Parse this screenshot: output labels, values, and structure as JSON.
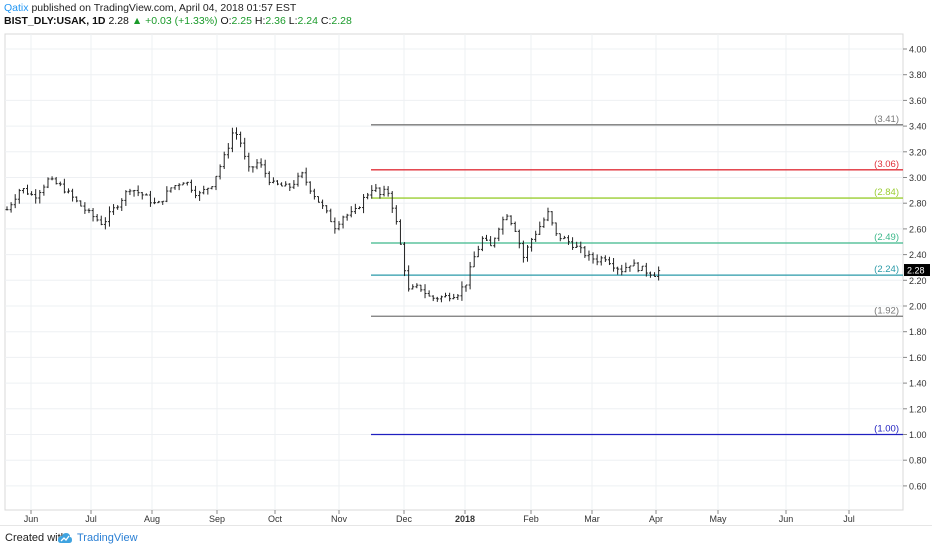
{
  "header": {
    "author": "Qatix",
    "published": "published on TradingView.com, April 04, 2018 01:57 EST",
    "symbol": "BIST_DLY:USAK, 1D",
    "last": "2.28",
    "change": "+0.03 (+1.33%)",
    "o_label": "O:",
    "o_value": "2.25",
    "h_label": "H:",
    "h_value": "2.36",
    "l_label": "L:",
    "l_value": "2.24",
    "c_label": "C:",
    "c_value": "2.28"
  },
  "footer": {
    "created_with": "Created with",
    "brand": "TradingView"
  },
  "colors": {
    "up": "#1a9a2a",
    "brand": "#2196f3",
    "bars": "#222222"
  },
  "chart_data": {
    "type": "ohlc",
    "y_ticks": [
      "4.00",
      "3.80",
      "3.60",
      "3.40",
      "3.20",
      "3.00",
      "2.80",
      "2.60",
      "2.40",
      "2.20",
      "2.00",
      "1.80",
      "1.60",
      "1.40",
      "1.20",
      "1.00",
      "0.80",
      "0.60"
    ],
    "ylim": [
      0.48,
      4.08
    ],
    "x_labels": [
      "Jun",
      "Jul",
      "Aug",
      "Sep",
      "Oct",
      "Nov",
      "Dec",
      "2018",
      "Feb",
      "Mar",
      "Apr",
      "May",
      "Jun",
      "Jul"
    ],
    "last_price_label": "2.28",
    "fib_levels": [
      {
        "label": "(3.41)",
        "value": 3.41,
        "color": "#787878"
      },
      {
        "label": "(3.06)",
        "value": 3.06,
        "color": "#e0303a"
      },
      {
        "label": "(2.84)",
        "value": 2.84,
        "color": "#9acd32"
      },
      {
        "label": "(2.49)",
        "value": 2.49,
        "color": "#3cb88a"
      },
      {
        "label": "(2.24)",
        "value": 2.24,
        "color": "#2a9aa8"
      },
      {
        "label": "(1.92)",
        "value": 1.92,
        "color": "#787878"
      },
      {
        "label": "(1.00)",
        "value": 1.0,
        "color": "#2020c0"
      }
    ],
    "price_path": [
      [
        0,
        2.75
      ],
      [
        5,
        2.92
      ],
      [
        10,
        2.85
      ],
      [
        15,
        2.98
      ],
      [
        20,
        2.93
      ],
      [
        25,
        2.82
      ],
      [
        30,
        2.72
      ],
      [
        35,
        2.64
      ],
      [
        40,
        2.78
      ],
      [
        45,
        2.92
      ],
      [
        50,
        2.86
      ],
      [
        55,
        2.78
      ],
      [
        60,
        2.92
      ],
      [
        65,
        2.98
      ],
      [
        70,
        2.86
      ],
      [
        75,
        2.95
      ],
      [
        80,
        3.18
      ],
      [
        83,
        3.38
      ],
      [
        86,
        3.25
      ],
      [
        88,
        3.05
      ],
      [
        92,
        3.12
      ],
      [
        97,
        2.95
      ],
      [
        103,
        2.92
      ],
      [
        108,
        3.02
      ],
      [
        112,
        2.88
      ],
      [
        117,
        2.72
      ],
      [
        120,
        2.62
      ],
      [
        123,
        2.7
      ],
      [
        127,
        2.72
      ],
      [
        130,
        2.82
      ],
      [
        134,
        2.93
      ],
      [
        137,
        2.85
      ],
      [
        139,
        2.92
      ],
      [
        141,
        2.78
      ],
      [
        143,
        2.6
      ],
      [
        145,
        2.35
      ],
      [
        147,
        2.12
      ],
      [
        151,
        2.15
      ],
      [
        155,
        2.06
      ],
      [
        160,
        2.07
      ],
      [
        165,
        2.1
      ],
      [
        168,
        2.18
      ],
      [
        171,
        2.38
      ],
      [
        174,
        2.52
      ],
      [
        177,
        2.46
      ],
      [
        180,
        2.62
      ],
      [
        183,
        2.72
      ],
      [
        186,
        2.6
      ],
      [
        189,
        2.38
      ],
      [
        192,
        2.52
      ],
      [
        195,
        2.62
      ],
      [
        198,
        2.72
      ],
      [
        201,
        2.55
      ],
      [
        204,
        2.52
      ],
      [
        207,
        2.48
      ],
      [
        210,
        2.43
      ],
      [
        213,
        2.38
      ],
      [
        216,
        2.36
      ],
      [
        219,
        2.38
      ],
      [
        222,
        2.32
      ],
      [
        225,
        2.28
      ],
      [
        228,
        2.33
      ],
      [
        231,
        2.3
      ],
      [
        234,
        2.27
      ],
      [
        237,
        2.25
      ],
      [
        239,
        2.28
      ]
    ],
    "bar_spacing_days": 1.5
  }
}
